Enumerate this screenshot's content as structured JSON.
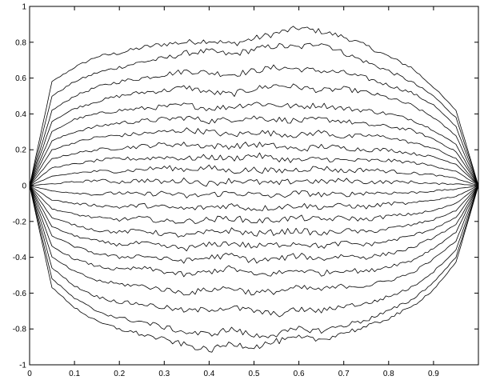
{
  "chart_data": {
    "type": "line",
    "title": "",
    "xlabel": "",
    "ylabel": "",
    "xlim": [
      0,
      1
    ],
    "ylim": [
      -1,
      1
    ],
    "grid": false,
    "legend": "none",
    "line_color": "#000000",
    "x_ticks": [
      "0",
      "0.1",
      "0.2",
      "0.3",
      "0.4",
      "0.5",
      "0.6",
      "0.7",
      "0.8",
      "0.9"
    ],
    "x_tick_values": [
      0,
      0.1,
      0.2,
      0.3,
      0.4,
      0.5,
      0.6,
      0.7,
      0.8,
      0.9
    ],
    "y_ticks": [
      "1",
      "0.8",
      "0.6",
      "0.4",
      "0.2",
      "0",
      "-0.2",
      "-0.4",
      "-0.6",
      "-0.8",
      "-1"
    ],
    "y_tick_values": [
      1,
      0.8,
      0.6,
      0.4,
      0.2,
      0,
      -0.2,
      -0.4,
      -0.6,
      -0.8,
      -1
    ],
    "x": [
      0,
      0.05,
      0.1,
      0.15,
      0.2,
      0.25,
      0.3,
      0.35,
      0.4,
      0.45,
      0.5,
      0.55,
      0.6,
      0.65,
      0.7,
      0.75,
      0.8,
      0.85,
      0.9,
      0.95,
      1
    ],
    "series": [
      {
        "values": [
          0,
          0.58,
          0.66,
          0.72,
          0.74,
          0.77,
          0.79,
          0.8,
          0.81,
          0.79,
          0.82,
          0.85,
          0.88,
          0.86,
          0.83,
          0.78,
          0.72,
          0.66,
          0.55,
          0.42,
          0
        ]
      },
      {
        "values": [
          0,
          0.5,
          0.58,
          0.63,
          0.66,
          0.69,
          0.71,
          0.74,
          0.75,
          0.73,
          0.76,
          0.78,
          0.77,
          0.8,
          0.74,
          0.69,
          0.64,
          0.58,
          0.5,
          0.38,
          0
        ]
      },
      {
        "values": [
          0,
          0.42,
          0.5,
          0.55,
          0.58,
          0.6,
          0.62,
          0.64,
          0.63,
          0.62,
          0.64,
          0.66,
          0.65,
          0.64,
          0.63,
          0.6,
          0.56,
          0.52,
          0.45,
          0.33,
          0
        ]
      },
      {
        "values": [
          0,
          0.36,
          0.43,
          0.47,
          0.5,
          0.52,
          0.53,
          0.55,
          0.52,
          0.51,
          0.54,
          0.56,
          0.55,
          0.53,
          0.54,
          0.52,
          0.49,
          0.45,
          0.38,
          0.28,
          0
        ]
      },
      {
        "values": [
          0,
          0.3,
          0.37,
          0.4,
          0.42,
          0.43,
          0.44,
          0.45,
          0.43,
          0.44,
          0.46,
          0.45,
          0.44,
          0.45,
          0.43,
          0.42,
          0.4,
          0.37,
          0.31,
          0.23,
          0
        ]
      },
      {
        "values": [
          0,
          0.25,
          0.3,
          0.33,
          0.35,
          0.36,
          0.37,
          0.38,
          0.36,
          0.37,
          0.38,
          0.37,
          0.36,
          0.37,
          0.36,
          0.34,
          0.33,
          0.31,
          0.26,
          0.19,
          0
        ]
      },
      {
        "values": [
          0,
          0.2,
          0.24,
          0.27,
          0.28,
          0.29,
          0.3,
          0.31,
          0.3,
          0.28,
          0.3,
          0.29,
          0.28,
          0.3,
          0.27,
          0.28,
          0.27,
          0.24,
          0.21,
          0.15,
          0
        ]
      },
      {
        "values": [
          0,
          0.15,
          0.18,
          0.2,
          0.21,
          0.22,
          0.23,
          0.23,
          0.22,
          0.22,
          0.23,
          0.22,
          0.2,
          0.22,
          0.21,
          0.2,
          0.2,
          0.18,
          0.16,
          0.12,
          0
        ]
      },
      {
        "values": [
          0,
          0.1,
          0.12,
          0.14,
          0.15,
          0.15,
          0.16,
          0.15,
          0.16,
          0.15,
          0.17,
          0.15,
          0.14,
          0.15,
          0.14,
          0.14,
          0.14,
          0.13,
          0.11,
          0.08,
          0
        ]
      },
      {
        "values": [
          0,
          0.05,
          0.07,
          0.08,
          0.08,
          0.09,
          0.1,
          0.09,
          0.1,
          0.08,
          0.09,
          0.08,
          0.09,
          0.1,
          0.08,
          0.09,
          0.08,
          0.07,
          0.06,
          0.04,
          0
        ]
      },
      {
        "values": [
          0,
          0.01,
          0.02,
          0.03,
          0.02,
          0.03,
          0.02,
          0.03,
          0.01,
          0.03,
          0.02,
          0.01,
          0.03,
          0.02,
          0.03,
          0.02,
          0.02,
          0.02,
          0.01,
          0.01,
          0
        ]
      },
      {
        "values": [
          0,
          -0.03,
          -0.04,
          -0.05,
          -0.04,
          -0.05,
          -0.04,
          -0.06,
          -0.05,
          -0.04,
          -0.05,
          -0.06,
          -0.04,
          -0.05,
          -0.05,
          -0.04,
          -0.04,
          -0.04,
          -0.03,
          -0.02,
          0
        ]
      },
      {
        "values": [
          0,
          -0.08,
          -0.1,
          -0.11,
          -0.12,
          -0.11,
          -0.12,
          -0.13,
          -0.12,
          -0.11,
          -0.13,
          -0.12,
          -0.11,
          -0.12,
          -0.11,
          -0.12,
          -0.1,
          -0.1,
          -0.08,
          -0.06,
          0
        ]
      },
      {
        "values": [
          0,
          -0.13,
          -0.16,
          -0.18,
          -0.19,
          -0.18,
          -0.2,
          -0.2,
          -0.19,
          -0.18,
          -0.2,
          -0.19,
          -0.18,
          -0.19,
          -0.18,
          -0.19,
          -0.17,
          -0.16,
          -0.14,
          -0.1,
          0
        ]
      },
      {
        "values": [
          0,
          -0.18,
          -0.22,
          -0.25,
          -0.26,
          -0.25,
          -0.27,
          -0.28,
          -0.26,
          -0.25,
          -0.27,
          -0.26,
          -0.25,
          -0.27,
          -0.25,
          -0.26,
          -0.24,
          -0.22,
          -0.19,
          -0.14,
          0
        ]
      },
      {
        "values": [
          0,
          -0.23,
          -0.28,
          -0.31,
          -0.33,
          -0.32,
          -0.34,
          -0.35,
          -0.33,
          -0.32,
          -0.34,
          -0.33,
          -0.32,
          -0.34,
          -0.32,
          -0.33,
          -0.31,
          -0.28,
          -0.24,
          -0.18,
          0
        ]
      },
      {
        "values": [
          0,
          -0.28,
          -0.34,
          -0.38,
          -0.4,
          -0.39,
          -0.41,
          -0.42,
          -0.4,
          -0.39,
          -0.42,
          -0.41,
          -0.39,
          -0.41,
          -0.39,
          -0.4,
          -0.38,
          -0.35,
          -0.29,
          -0.22,
          0
        ]
      },
      {
        "values": [
          0,
          -0.34,
          -0.41,
          -0.45,
          -0.47,
          -0.46,
          -0.48,
          -0.5,
          -0.48,
          -0.46,
          -0.5,
          -0.49,
          -0.47,
          -0.49,
          -0.47,
          -0.48,
          -0.45,
          -0.42,
          -0.35,
          -0.26,
          0
        ]
      },
      {
        "values": [
          0,
          -0.4,
          -0.48,
          -0.53,
          -0.55,
          -0.56,
          -0.58,
          -0.6,
          -0.58,
          -0.57,
          -0.6,
          -0.59,
          -0.57,
          -0.58,
          -0.56,
          -0.56,
          -0.53,
          -0.49,
          -0.41,
          -0.31,
          0
        ]
      },
      {
        "values": [
          0,
          -0.46,
          -0.56,
          -0.62,
          -0.65,
          -0.66,
          -0.68,
          -0.7,
          -0.69,
          -0.68,
          -0.7,
          -0.72,
          -0.69,
          -0.7,
          -0.67,
          -0.66,
          -0.62,
          -0.57,
          -0.48,
          -0.36,
          0
        ]
      },
      {
        "values": [
          0,
          -0.52,
          -0.63,
          -0.7,
          -0.74,
          -0.76,
          -0.79,
          -0.82,
          -0.83,
          -0.8,
          -0.84,
          -0.83,
          -0.8,
          -0.81,
          -0.78,
          -0.75,
          -0.7,
          -0.64,
          -0.54,
          -0.4,
          0
        ]
      },
      {
        "values": [
          0,
          -0.57,
          -0.68,
          -0.76,
          -0.8,
          -0.83,
          -0.86,
          -0.89,
          -0.92,
          -0.88,
          -0.9,
          -0.87,
          -0.85,
          -0.86,
          -0.82,
          -0.79,
          -0.74,
          -0.68,
          -0.58,
          -0.43,
          0
        ]
      }
    ]
  }
}
